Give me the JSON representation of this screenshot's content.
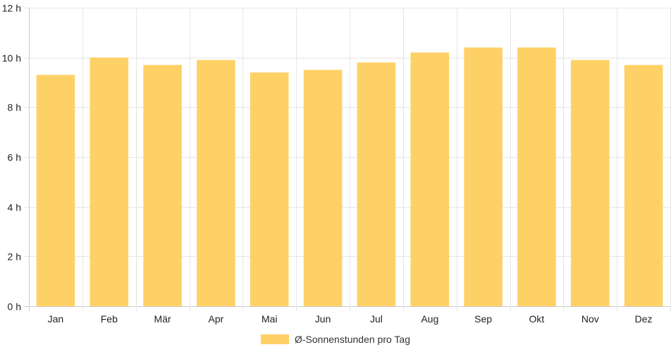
{
  "chart_data": {
    "type": "bar",
    "categories": [
      "Jan",
      "Feb",
      "Mär",
      "Apr",
      "Mai",
      "Jun",
      "Jul",
      "Aug",
      "Sep",
      "Okt",
      "Nov",
      "Dez"
    ],
    "series": [
      {
        "name": "Ø-Sonnenstunden pro Tag",
        "values": [
          9.3,
          10.0,
          9.7,
          9.9,
          9.4,
          9.5,
          9.8,
          10.2,
          10.4,
          10.4,
          9.9,
          9.7
        ],
        "color": "#fed166"
      }
    ],
    "y_ticks": [
      "0 h",
      "2 h",
      "4 h",
      "6 h",
      "8 h",
      "10 h",
      "12 h"
    ],
    "ylim": [
      0,
      12
    ],
    "grid": true,
    "legend_position": "bottom"
  },
  "colors": {
    "bar": "#fed166",
    "grid": "#e6e6e6",
    "axis": "#cccccc",
    "text": "#222222"
  }
}
